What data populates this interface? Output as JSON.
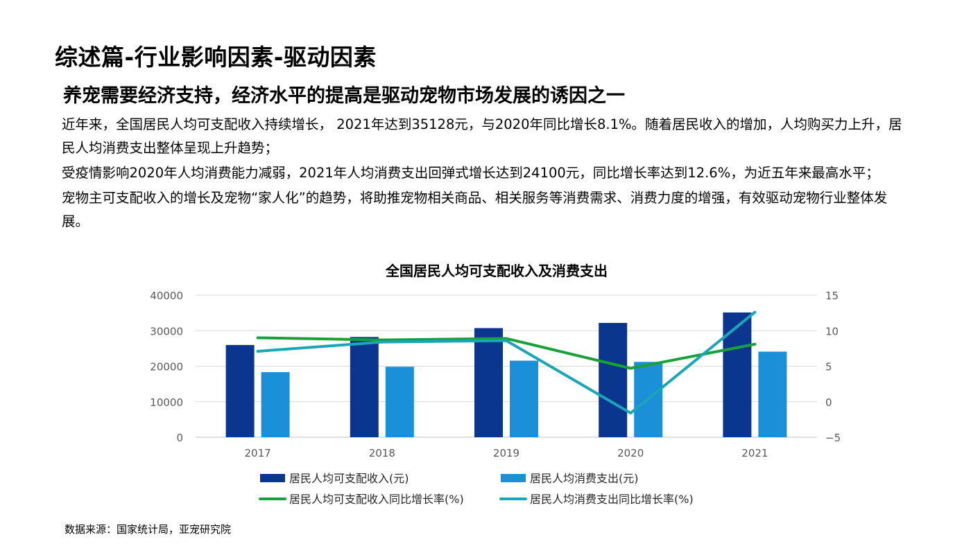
{
  "page": {
    "title": "综述篇-行业影响因素-驱动因素",
    "subtitle": "养宠需要经济支持，经济水平的提高是驱动宠物市场发展的诱因之一",
    "paragraphs": [
      "近年来，全国居民人均可支配收入持续增长， 2021年达到35128元，与2020年同比增长8.1%。随着居民收入的增加，人均购买力上升，居民人均消费支出整体呈现上升趋势；",
      "受疫情影响2020年人均消费能力减弱，2021年人均消费支出回弹式增长达到24100元，同比增长率达到12.6%，为近五年来最高水平；",
      "宠物主可支配收入的增长及宠物“家人化”的趋势，将助推宠物相关商品、相关服务等消费需求、消费力度的增强，有效驱动宠物行业整体发展。"
    ],
    "source": "数据来源：国家统计局，亚宠研究院"
  },
  "chart_data": {
    "type": "bar",
    "title": "全国居民人均可支配收入及消费支出",
    "categories": [
      "2017",
      "2018",
      "2019",
      "2020",
      "2021"
    ],
    "series": [
      {
        "name": "居民人均可支配收入(元)",
        "kind": "bar",
        "axis": "left",
        "color": "#0b3690",
        "values": [
          25974,
          28228,
          30733,
          32189,
          35128
        ]
      },
      {
        "name": "居民人均消费支出(元)",
        "kind": "bar",
        "axis": "left",
        "color": "#1b8fd8",
        "values": [
          18322,
          19853,
          21559,
          21210,
          24100
        ]
      },
      {
        "name": "居民人均可支配收入同比增长率(%)",
        "kind": "line",
        "axis": "right",
        "color": "#1aa03a",
        "values": [
          9.0,
          8.7,
          8.9,
          4.7,
          8.1
        ]
      },
      {
        "name": "居民人均消费支出同比增长率(%)",
        "kind": "line",
        "axis": "right",
        "color": "#1ba5b8",
        "values": [
          7.1,
          8.4,
          8.6,
          -1.6,
          12.6
        ]
      }
    ],
    "y_left": {
      "min": 0,
      "max": 40000,
      "ticks": [
        "0",
        "10000",
        "20000",
        "30000",
        "40000"
      ]
    },
    "y_right": {
      "min": -5,
      "max": 15,
      "ticks": [
        "−5",
        "0",
        "5",
        "10",
        "15"
      ]
    },
    "grid": true,
    "legend": "bottom"
  }
}
